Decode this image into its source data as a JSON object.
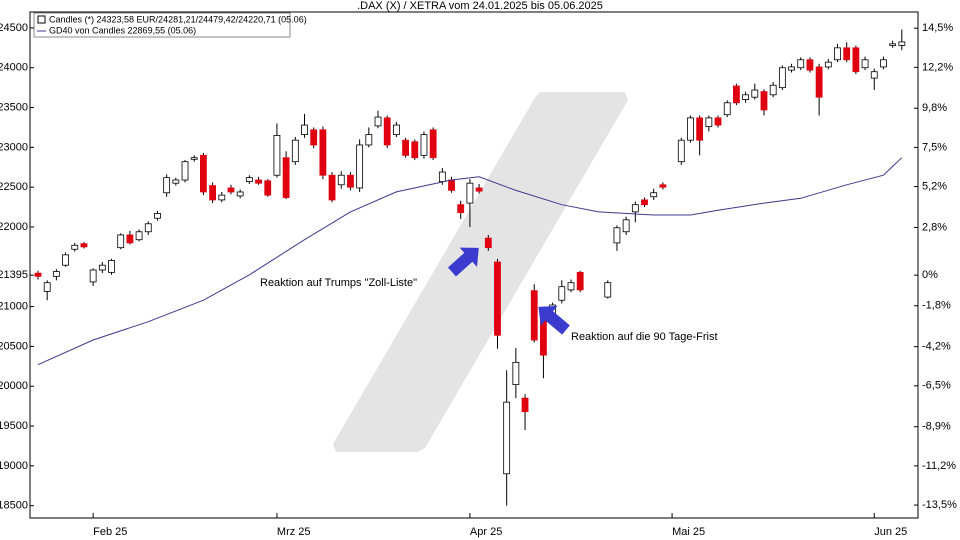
{
  "chart_data": {
    "type": "candlestick",
    "title": ".DAX (X) / XETRA vom 24.01.2025 bis 05.06.2025",
    "series": [
      {
        "name": "Candles (*) 24323,58 EUR/24281,21/24479,42/24220,71 (05.06)",
        "up_color": "#ffffff",
        "down_color": "#e00010",
        "open": [
          21420,
          21190,
          21380,
          21520,
          21720,
          21790,
          21310,
          21460,
          21430,
          21740,
          21900,
          21840,
          21940,
          22110,
          22430,
          22550,
          22590,
          22850,
          22900,
          22520,
          22340,
          22490,
          22390,
          22570,
          22590,
          22580,
          22650,
          22870,
          22820,
          23160,
          23220,
          23220,
          22650,
          22530,
          22650,
          22490,
          23030,
          23270,
          23370,
          23160,
          23090,
          23070,
          22900,
          23220,
          22570,
          22590,
          22280,
          22300,
          22490,
          21860,
          21560,
          18900,
          20020,
          19850,
          21200,
          20890,
          20890,
          21080,
          21210,
          21430,
          null,
          null,
          21120,
          21800,
          21940,
          22190,
          22340,
          22380,
          22530,
          null,
          22820,
          23090,
          23370,
          23260,
          23370,
          23410,
          23770,
          23600,
          23630,
          23700,
          23660,
          23750,
          23970,
          24000,
          24100,
          24010,
          24010,
          24100,
          24250,
          24250,
          24000,
          23870,
          24010,
          24280,
          24281
        ],
        "high": [
          21450,
          21330,
          21470,
          21680,
          21800,
          21810,
          21480,
          21560,
          21600,
          21920,
          21950,
          21970,
          22070,
          22200,
          22660,
          22620,
          22840,
          22900,
          22930,
          22560,
          22440,
          22530,
          22470,
          22650,
          22630,
          22600,
          23300,
          22950,
          23130,
          23420,
          23250,
          23260,
          22690,
          22700,
          22690,
          23100,
          23250,
          23460,
          23400,
          23320,
          23120,
          23100,
          23200,
          23250,
          22740,
          22630,
          22330,
          22600,
          22540,
          21900,
          21600,
          20200,
          20480,
          19900,
          21280,
          20920,
          21050,
          21330,
          21340,
          21450,
          null,
          null,
          21330,
          22020,
          22130,
          22320,
          22370,
          22480,
          22560,
          null,
          23120,
          23400,
          23400,
          23400,
          23400,
          23590,
          23800,
          23700,
          23800,
          23730,
          23820,
          24030,
          24050,
          24130,
          24130,
          24050,
          24110,
          24300,
          24320,
          24280,
          24140,
          23990,
          24140,
          24340,
          24479
        ],
        "low": [
          21340,
          21080,
          21330,
          21500,
          21690,
          21730,
          21260,
          21420,
          21400,
          21720,
          21780,
          21820,
          21900,
          22080,
          22380,
          22520,
          22560,
          22820,
          22400,
          22300,
          22310,
          22410,
          22360,
          22540,
          22530,
          22380,
          22620,
          22350,
          22780,
          23120,
          22990,
          22600,
          22310,
          22480,
          22460,
          22440,
          23000,
          23240,
          22990,
          23130,
          22870,
          22840,
          22860,
          22840,
          22530,
          22430,
          22100,
          22000,
          22420,
          21700,
          20470,
          18500,
          19850,
          19450,
          20550,
          20100,
          20860,
          21040,
          21180,
          21180,
          null,
          null,
          21100,
          21700,
          21900,
          22060,
          22250,
          22340,
          22470,
          null,
          22780,
          23060,
          22900,
          23200,
          23250,
          23380,
          23530,
          23560,
          23600,
          23400,
          23630,
          23720,
          23940,
          23970,
          23940,
          23400,
          23980,
          24070,
          24070,
          23920,
          23970,
          23720,
          23980,
          24250,
          24221
        ],
        "close": [
          21380,
          21300,
          21440,
          21650,
          21770,
          21750,
          21460,
          21520,
          21580,
          21900,
          21800,
          21940,
          22040,
          22170,
          22620,
          22590,
          22820,
          22870,
          22440,
          22340,
          22400,
          22440,
          22440,
          22620,
          22550,
          22400,
          23150,
          22370,
          23090,
          23280,
          23030,
          22650,
          22340,
          22650,
          22500,
          23030,
          23160,
          23380,
          23030,
          23280,
          22900,
          22870,
          23160,
          22870,
          22690,
          22460,
          22180,
          22550,
          22450,
          21740,
          20640,
          19800,
          20300,
          19680,
          20580,
          20390,
          21020,
          21250,
          21300,
          21210,
          null,
          null,
          21300,
          21990,
          22090,
          22280,
          22280,
          22430,
          22500,
          null,
          23090,
          23370,
          23090,
          23370,
          23280,
          23560,
          23560,
          23660,
          23720,
          23470,
          23780,
          24000,
          24010,
          24100,
          23970,
          23630,
          24070,
          24250,
          24100,
          23950,
          24100,
          23950,
          24100,
          24300,
          24324
        ]
      },
      {
        "name": "GD40 von Candles 22869,55 (05.06)",
        "type": "line",
        "color": "#3a3a8c",
        "x": [
          0,
          6,
          12,
          18,
          23,
          29,
          34,
          39,
          45,
          48,
          52,
          57,
          61,
          67,
          71,
          74,
          79,
          83,
          88,
          92,
          94
        ],
        "values": [
          20270,
          20580,
          20810,
          21080,
          21400,
          21840,
          22190,
          22440,
          22590,
          22630,
          22460,
          22280,
          22190,
          22150,
          22150,
          22210,
          22300,
          22360,
          22530,
          22650,
          22870
        ]
      }
    ],
    "xlim": [
      -0.87,
      95.76
    ],
    "xticks": [
      {
        "value": 6,
        "label": "Feb 25"
      },
      {
        "value": 26,
        "label": "Mrz 25"
      },
      {
        "value": 47,
        "label": "Apr 25"
      },
      {
        "value": 69,
        "label": "Mai 25"
      },
      {
        "value": 91,
        "label": "Jun 25"
      }
    ],
    "ylim": [
      18345,
      24700
    ],
    "yticks": [
      24500,
      24000,
      23500,
      23000,
      22500,
      22000,
      21395,
      21000,
      20500,
      20000,
      19500,
      19000,
      18500
    ],
    "y2lim": [
      -14.26,
      15.45
    ],
    "y2ticks": [
      {
        "value": 14.5,
        "label": "14,5%"
      },
      {
        "value": 12.2,
        "label": "12,2%"
      },
      {
        "value": 9.8,
        "label": "9,8%"
      },
      {
        "value": 7.5,
        "label": "7,5%"
      },
      {
        "value": 5.2,
        "label": "5,2%"
      },
      {
        "value": 2.8,
        "label": "2,8%"
      },
      {
        "value": 0,
        "label": "0%"
      },
      {
        "value": -1.8,
        "label": "-1,8%"
      },
      {
        "value": -4.2,
        "label": "-4,2%"
      },
      {
        "value": -6.5,
        "label": "-6,5%"
      },
      {
        "value": -8.9,
        "label": "-8,9%"
      },
      {
        "value": -11.2,
        "label": "-11,2%"
      },
      {
        "value": -13.5,
        "label": "-13,5%"
      }
    ],
    "grid": false,
    "legend": "top-left",
    "annotations": [
      "Reaktion auf Trumps \"Zoll-Liste\"",
      "Reaktion auf die 90 Tage-Frist"
    ]
  }
}
